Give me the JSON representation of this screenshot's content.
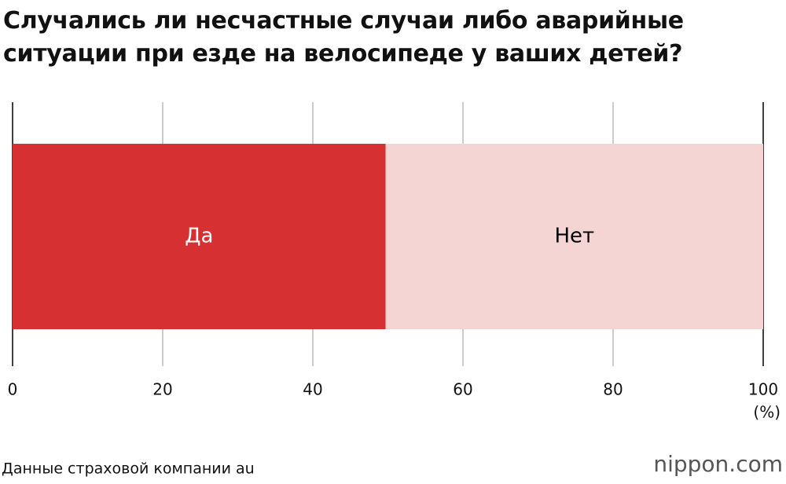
{
  "chart_data": {
    "type": "stacked_bar",
    "title": "Случались ли несчастные случаи либо аварийные ситуации при езде на велосипеде у ваших детей?",
    "series": [
      {
        "name": "Да",
        "color": "#d63033",
        "label_color": "#ffffff",
        "values": [
          49.7
        ]
      },
      {
        "name": "Нет",
        "color": "#f5d5d3",
        "label_color": "#000000",
        "values": [
          50.3
        ]
      }
    ],
    "xlim": [
      0,
      100
    ],
    "xticks": [
      0,
      20,
      40,
      60,
      80,
      100
    ],
    "grid": true,
    "unit_label": "(%)",
    "source": "Данные страховой компании au",
    "logo": "nippon.com"
  }
}
